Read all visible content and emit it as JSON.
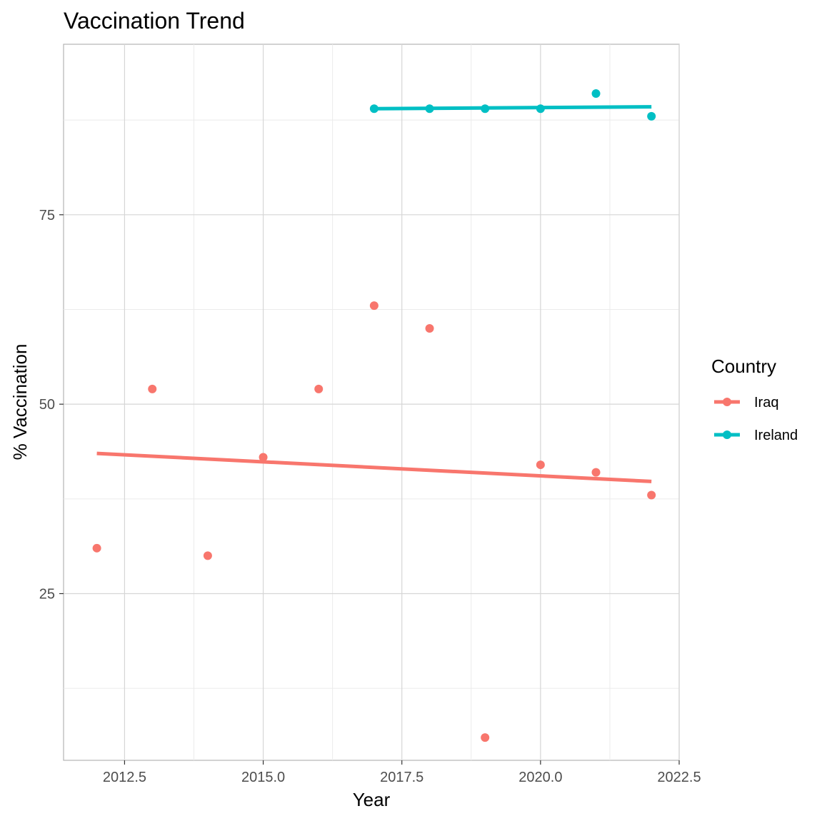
{
  "chart_data": {
    "type": "scatter",
    "title": "Vaccination Trend",
    "xlabel": "Year",
    "ylabel": "% Vaccination",
    "xlim": [
      2011.4,
      2022.5
    ],
    "ylim": [
      3.0,
      97.5
    ],
    "x_ticks": [
      2012.5,
      2015.0,
      2017.5,
      2020.0,
      2022.5
    ],
    "x_tick_labels": [
      "2012.5",
      "2015.0",
      "2017.5",
      "2020.0",
      "2022.5"
    ],
    "y_ticks": [
      25,
      50,
      75
    ],
    "y_tick_labels": [
      "25",
      "50",
      "75"
    ],
    "grid": true,
    "legend": {
      "title": "Country",
      "position": "right"
    },
    "series": [
      {
        "name": "Iraq",
        "color": "#F8766D",
        "x": [
          2012,
          2013,
          2014,
          2015,
          2016,
          2017,
          2018,
          2019,
          2020,
          2021,
          2022
        ],
        "y": [
          31,
          52,
          30,
          43,
          52,
          63,
          60,
          6,
          42,
          41,
          38
        ],
        "trend": {
          "x": [
            2012,
            2022
          ],
          "y": [
            43.5,
            39.8
          ]
        }
      },
      {
        "name": "Ireland",
        "color": "#00BFC4",
        "x": [
          2017,
          2018,
          2019,
          2020,
          2021,
          2022
        ],
        "y": [
          89,
          89,
          89,
          89,
          91,
          88
        ],
        "trend": {
          "x": [
            2017,
            2022
          ],
          "y": [
            89.0,
            89.25
          ]
        }
      }
    ]
  }
}
